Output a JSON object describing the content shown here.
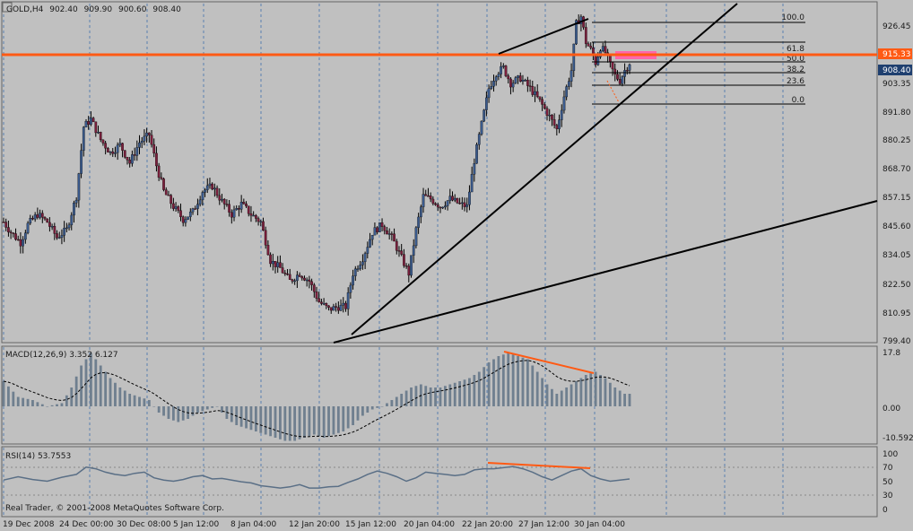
{
  "header": {
    "symbol": "GOLD,H4",
    "open": "902.40",
    "high": "909.90",
    "low": "900.60",
    "close": "908.40"
  },
  "price_axis": {
    "ticks": [
      "926.45",
      "915.33",
      "908.40",
      "903.35",
      "891.80",
      "880.25",
      "868.70",
      "857.15",
      "845.60",
      "834.05",
      "822.50",
      "810.95",
      "799.40"
    ],
    "resistance_label": "915.33",
    "current_label": "908.40"
  },
  "time_axis": [
    "19 Dec 2008",
    "24 Dec 00:00",
    "30 Dec 08:00",
    "5 Jan 12:00",
    "8 Jan 04:00",
    "12 Jan 20:00",
    "15 Jan 12:00",
    "20 Jan 04:00",
    "22 Jan 20:00",
    "27 Jan 12:00",
    "30 Jan 04:00"
  ],
  "fibonacci": [
    "100.0",
    "61.8",
    "50.0",
    "38.2",
    "23.6",
    "0.0"
  ],
  "macd": {
    "title": "MACD(12,26,9) 3.352 6.127",
    "ticks": [
      "17.8",
      "0.00",
      "-10.592"
    ]
  },
  "rsi": {
    "title": "RSI(14) 53.7553",
    "ticks": [
      "100",
      "70",
      "50",
      "30",
      "0"
    ]
  },
  "footer": {
    "copyright": "Real Trader, © 2001-2008 MetaQuotes Software Corp."
  },
  "colors": {
    "background": "#c0c0c0",
    "bull_candle": "#3a5a8c",
    "bear_candle": "#7a1f3c",
    "histogram": "#6f7f8f",
    "resistance": "#ff5a14",
    "divergence": "#ff5a14",
    "fib_zone": "#ff66aa",
    "trendline": "#000000",
    "grid": "#5a7fb0"
  },
  "chart_data": {
    "type": "candlestick",
    "price_range": [
      799.4,
      931.0
    ],
    "x_labels": [
      "19 Dec 2008",
      "24 Dec 00:00",
      "30 Dec 08:00",
      "5 Jan 12:00",
      "8 Jan 04:00",
      "12 Jan 20:00",
      "15 Jan 12:00",
      "20 Jan 04:00",
      "22 Jan 20:00",
      "27 Jan 12:00",
      "30 Jan 04:00"
    ],
    "close_path": [
      [
        0,
        846
      ],
      [
        3,
        842
      ],
      [
        7,
        838
      ],
      [
        10,
        845
      ],
      [
        14,
        849
      ],
      [
        18,
        846
      ],
      [
        22,
        840
      ],
      [
        26,
        843
      ],
      [
        30,
        856
      ],
      [
        33,
        883
      ],
      [
        36,
        886
      ],
      [
        40,
        878
      ],
      [
        44,
        873
      ],
      [
        48,
        876
      ],
      [
        52,
        869
      ],
      [
        56,
        877
      ],
      [
        60,
        880
      ],
      [
        63,
        868
      ],
      [
        66,
        858
      ],
      [
        70,
        852
      ],
      [
        74,
        847
      ],
      [
        78,
        850
      ],
      [
        82,
        858
      ],
      [
        86,
        860
      ],
      [
        90,
        854
      ],
      [
        94,
        849
      ],
      [
        98,
        853
      ],
      [
        102,
        849
      ],
      [
        106,
        846
      ],
      [
        110,
        831
      ],
      [
        114,
        828
      ],
      [
        118,
        823
      ],
      [
        122,
        826
      ],
      [
        126,
        823
      ],
      [
        130,
        815
      ],
      [
        134,
        812
      ],
      [
        138,
        813
      ],
      [
        141,
        813
      ],
      [
        144,
        826
      ],
      [
        148,
        832
      ],
      [
        152,
        842
      ],
      [
        156,
        845
      ],
      [
        160,
        840
      ],
      [
        164,
        832
      ],
      [
        167,
        826
      ],
      [
        170,
        843
      ],
      [
        173,
        856
      ],
      [
        176,
        855
      ],
      [
        180,
        852
      ],
      [
        184,
        855
      ],
      [
        188,
        853
      ],
      [
        191,
        852
      ],
      [
        194,
        870
      ],
      [
        197,
        884
      ],
      [
        200,
        898
      ],
      [
        203,
        904
      ],
      [
        206,
        906
      ],
      [
        209,
        900
      ],
      [
        213,
        902
      ],
      [
        217,
        898
      ],
      [
        221,
        893
      ],
      [
        225,
        887
      ],
      [
        228,
        882
      ],
      [
        231,
        895
      ],
      [
        234,
        905
      ],
      [
        236,
        923
      ],
      [
        238,
        926
      ],
      [
        240,
        916
      ],
      [
        242,
        913
      ],
      [
        244,
        908
      ],
      [
        246,
        914
      ],
      [
        248,
        912
      ],
      [
        250,
        907
      ],
      [
        252,
        903
      ],
      [
        254,
        901
      ],
      [
        256,
        905
      ],
      [
        258,
        908
      ]
    ],
    "macd_histogram": [
      [
        0,
        8
      ],
      [
        6,
        3
      ],
      [
        12,
        2
      ],
      [
        18,
        0
      ],
      [
        24,
        1
      ],
      [
        28,
        6
      ],
      [
        32,
        13
      ],
      [
        36,
        17
      ],
      [
        40,
        13
      ],
      [
        44,
        9
      ],
      [
        48,
        6
      ],
      [
        52,
        4
      ],
      [
        56,
        3
      ],
      [
        60,
        2
      ],
      [
        64,
        -2
      ],
      [
        68,
        -4
      ],
      [
        72,
        -5
      ],
      [
        76,
        -4
      ],
      [
        80,
        -2
      ],
      [
        84,
        -1
      ],
      [
        88,
        0
      ],
      [
        92,
        -4
      ],
      [
        96,
        -6
      ],
      [
        100,
        -7
      ],
      [
        104,
        -8
      ],
      [
        108,
        -9
      ],
      [
        112,
        -10
      ],
      [
        116,
        -11
      ],
      [
        120,
        -11
      ],
      [
        124,
        -10
      ],
      [
        128,
        -9
      ],
      [
        132,
        -10
      ],
      [
        136,
        -9
      ],
      [
        140,
        -8
      ],
      [
        144,
        -6
      ],
      [
        148,
        -3
      ],
      [
        152,
        -1
      ],
      [
        156,
        0
      ],
      [
        160,
        2
      ],
      [
        164,
        4
      ],
      [
        168,
        6
      ],
      [
        172,
        7
      ],
      [
        176,
        6
      ],
      [
        180,
        6
      ],
      [
        184,
        7
      ],
      [
        188,
        8
      ],
      [
        192,
        9
      ],
      [
        196,
        11
      ],
      [
        200,
        14
      ],
      [
        204,
        16
      ],
      [
        208,
        17
      ],
      [
        212,
        16
      ],
      [
        216,
        15
      ],
      [
        220,
        11
      ],
      [
        224,
        7
      ],
      [
        228,
        4
      ],
      [
        232,
        6
      ],
      [
        236,
        8
      ],
      [
        240,
        10
      ],
      [
        244,
        11
      ],
      [
        248,
        9
      ],
      [
        252,
        6
      ],
      [
        256,
        4
      ],
      [
        258,
        4
      ]
    ],
    "rsi_path": [
      [
        0,
        52
      ],
      [
        6,
        58
      ],
      [
        12,
        53
      ],
      [
        18,
        50
      ],
      [
        24,
        57
      ],
      [
        30,
        62
      ],
      [
        34,
        75
      ],
      [
        38,
        72
      ],
      [
        42,
        66
      ],
      [
        46,
        62
      ],
      [
        50,
        60
      ],
      [
        54,
        64
      ],
      [
        58,
        66
      ],
      [
        62,
        56
      ],
      [
        66,
        52
      ],
      [
        70,
        50
      ],
      [
        74,
        53
      ],
      [
        78,
        58
      ],
      [
        82,
        60
      ],
      [
        86,
        54
      ],
      [
        90,
        55
      ],
      [
        94,
        52
      ],
      [
        98,
        49
      ],
      [
        102,
        47
      ],
      [
        106,
        42
      ],
      [
        110,
        40
      ],
      [
        114,
        38
      ],
      [
        118,
        40
      ],
      [
        122,
        44
      ],
      [
        126,
        38
      ],
      [
        130,
        38
      ],
      [
        134,
        40
      ],
      [
        138,
        41
      ],
      [
        142,
        48
      ],
      [
        146,
        54
      ],
      [
        150,
        62
      ],
      [
        154,
        68
      ],
      [
        158,
        64
      ],
      [
        162,
        58
      ],
      [
        166,
        50
      ],
      [
        170,
        56
      ],
      [
        174,
        66
      ],
      [
        178,
        64
      ],
      [
        182,
        62
      ],
      [
        186,
        60
      ],
      [
        190,
        62
      ],
      [
        194,
        70
      ],
      [
        198,
        72
      ],
      [
        202,
        72
      ],
      [
        206,
        74
      ],
      [
        210,
        76
      ],
      [
        214,
        72
      ],
      [
        218,
        66
      ],
      [
        222,
        58
      ],
      [
        226,
        52
      ],
      [
        230,
        60
      ],
      [
        234,
        68
      ],
      [
        238,
        72
      ],
      [
        242,
        60
      ],
      [
        246,
        54
      ],
      [
        250,
        50
      ],
      [
        254,
        52
      ],
      [
        258,
        54
      ]
    ]
  }
}
